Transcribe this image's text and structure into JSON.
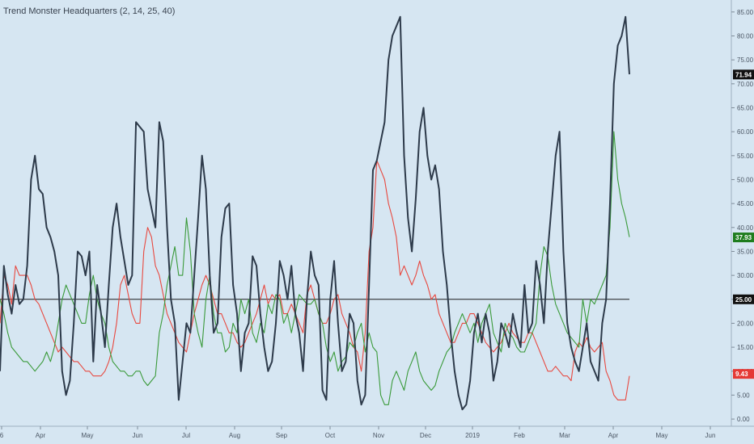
{
  "indicator": {
    "title": "Trend Monster Headquarters (2, 14, 25, 40)"
  },
  "colors": {
    "background": "#d6e6f2",
    "adx": "#2d3a4a",
    "plus_di": "#3a9a3a",
    "minus_di": "#e8483f",
    "threshold": "#1c1c1c",
    "adx_badge": "#111111",
    "plus_badge": "#1e7d1e",
    "minus_badge": "#e53935",
    "threshold_badge": "#111111"
  },
  "chart_data": {
    "type": "line",
    "ylim": [
      -1.5,
      87.5
    ],
    "y_ticks": [
      "0.00",
      "5.00",
      "10.00",
      "15.00",
      "20.00",
      "25.00",
      "30.00",
      "35.00",
      "40.00",
      "45.00",
      "50.00",
      "55.00",
      "60.00",
      "65.00",
      "70.00",
      "75.00",
      "80.00",
      "85.00"
    ],
    "x_ticks": [
      "6",
      "Apr",
      "May",
      "Jun",
      "Jul",
      "Aug",
      "Sep",
      "Oct",
      "Nov",
      "Dec",
      "2019",
      "Feb",
      "Mar",
      "Apr",
      "May",
      "Jun"
    ],
    "threshold": 25,
    "series": [
      {
        "key": "adx",
        "values": [
          10,
          32,
          26,
          22,
          28,
          24,
          25,
          32,
          50,
          55,
          48,
          47,
          40,
          38,
          35,
          30,
          10,
          5,
          8,
          20,
          35,
          34,
          30,
          35,
          12,
          28,
          22,
          15,
          28,
          40,
          45,
          38,
          33,
          28,
          30,
          62,
          61,
          60,
          48,
          44,
          40,
          62,
          58,
          40,
          25,
          20,
          4,
          12,
          20,
          18,
          30,
          42,
          55,
          48,
          30,
          18,
          20,
          38,
          44,
          45,
          28,
          22,
          10,
          18,
          20,
          34,
          32,
          22,
          15,
          10,
          12,
          20,
          33,
          30,
          25,
          32,
          22,
          18,
          10,
          25,
          35,
          30,
          28,
          6,
          4,
          25,
          33,
          20,
          10,
          12,
          22,
          20,
          8,
          3,
          5,
          28,
          52,
          54,
          58,
          62,
          75,
          80,
          82,
          84,
          55,
          42,
          35,
          46,
          60,
          65,
          55,
          50,
          53,
          48,
          35,
          28,
          18,
          10,
          5,
          2,
          3,
          8,
          18,
          22,
          16,
          22,
          18,
          8,
          12,
          20,
          18,
          15,
          22,
          18,
          15,
          28,
          18,
          20,
          33,
          28,
          20,
          35,
          45,
          55,
          60,
          35,
          20,
          15,
          12,
          10,
          15,
          20,
          12,
          10,
          8,
          20,
          25,
          45,
          70,
          78,
          80,
          84,
          72
        ],
        "last_label": "71.94"
      },
      {
        "key": "plus_di",
        "values": [
          25,
          22,
          18,
          15,
          14,
          13,
          12,
          12,
          11,
          10,
          11,
          12,
          14,
          12,
          15,
          20,
          25,
          28,
          26,
          24,
          22,
          20,
          20,
          26,
          30,
          25,
          22,
          20,
          15,
          12,
          11,
          10,
          10,
          9,
          9,
          10,
          10,
          8,
          7,
          8,
          9,
          18,
          22,
          28,
          32,
          36,
          30,
          30,
          42,
          35,
          22,
          18,
          15,
          25,
          30,
          22,
          18,
          18,
          14,
          15,
          20,
          18,
          25,
          22,
          25,
          18,
          16,
          20,
          18,
          24,
          22,
          26,
          25,
          20,
          22,
          18,
          22,
          26,
          25,
          24,
          24,
          25,
          22,
          20,
          15,
          12,
          14,
          10,
          12,
          13,
          16,
          15,
          18,
          20,
          14,
          18,
          15,
          14,
          5,
          3,
          3,
          8,
          10,
          8,
          6,
          10,
          12,
          14,
          10,
          8,
          7,
          6,
          7,
          10,
          12,
          14,
          15,
          18,
          20,
          22,
          20,
          18,
          20,
          16,
          20,
          22,
          24,
          18,
          16,
          14,
          20,
          18,
          17,
          15,
          14,
          14,
          16,
          18,
          20,
          30,
          36,
          34,
          28,
          24,
          22,
          20,
          18,
          17,
          16,
          15,
          25,
          20,
          25,
          24,
          26,
          28,
          30,
          40,
          60,
          50,
          45,
          42,
          38
        ]
      },
      {
        "key": "minus_di",
        "values": [
          20,
          30,
          28,
          24,
          32,
          30,
          30,
          30,
          28,
          25,
          24,
          22,
          20,
          18,
          16,
          14,
          15,
          14,
          13,
          12,
          12,
          11,
          10,
          10,
          9,
          9,
          9,
          10,
          12,
          15,
          20,
          28,
          30,
          26,
          22,
          20,
          20,
          35,
          40,
          38,
          32,
          30,
          26,
          22,
          20,
          18,
          16,
          15,
          14,
          18,
          22,
          25,
          28,
          30,
          28,
          25,
          22,
          22,
          20,
          18,
          18,
          16,
          15,
          16,
          18,
          20,
          22,
          25,
          28,
          24,
          26,
          25,
          26,
          22,
          22,
          24,
          22,
          20,
          18,
          26,
          28,
          25,
          22,
          20,
          20,
          22,
          25,
          26,
          22,
          20,
          18,
          15,
          14,
          10,
          18,
          35,
          40,
          54,
          52,
          50,
          45,
          42,
          38,
          30,
          32,
          30,
          28,
          30,
          33,
          30,
          28,
          25,
          26,
          22,
          20,
          18,
          16,
          16,
          18,
          20,
          20,
          22,
          22,
          20,
          18,
          16,
          15,
          14,
          15,
          16,
          18,
          20,
          18,
          17,
          16,
          16,
          18,
          18,
          16,
          14,
          12,
          10,
          10,
          11,
          10,
          9,
          9,
          8,
          14,
          16,
          15,
          17,
          15,
          14,
          15,
          16,
          10,
          8,
          5,
          4,
          4,
          4,
          9
        ],
        "last_label": "9.43"
      }
    ],
    "badges": [
      {
        "series": "adx",
        "label": "71.94",
        "value": 71.94
      },
      {
        "series": "plus_di",
        "label": "37.93",
        "value": 37.93
      },
      {
        "series": "threshold",
        "label": "25.00",
        "value": 25
      },
      {
        "series": "minus_di",
        "label": "9.43",
        "value": 9.43
      }
    ]
  }
}
